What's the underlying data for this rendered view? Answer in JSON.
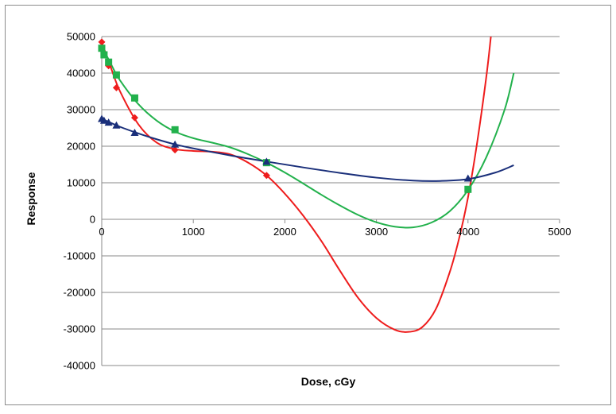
{
  "chart_data": {
    "type": "scatter",
    "title": "",
    "xlabel": "Dose, cGy",
    "ylabel": "Response",
    "xlim": [
      0,
      5000
    ],
    "ylim": [
      -40000,
      50000
    ],
    "xticks": [
      0,
      1000,
      2000,
      3000,
      4000,
      5000
    ],
    "yticks": [
      -40000,
      -30000,
      -20000,
      -10000,
      0,
      10000,
      20000,
      30000,
      40000,
      50000
    ],
    "grid": "horizontal",
    "legend": "none",
    "series": [
      {
        "marker": "diamond",
        "color": "#ee1c1c",
        "points": [
          {
            "x": 0,
            "y": 48500
          },
          {
            "x": 25,
            "y": 45500
          },
          {
            "x": 75,
            "y": 42000
          },
          {
            "x": 160,
            "y": 36000
          },
          {
            "x": 360,
            "y": 27800
          },
          {
            "x": 800,
            "y": 19000
          },
          {
            "x": 1800,
            "y": 12000
          },
          {
            "x": 4000,
            "y": 8000
          }
        ],
        "trendline": [
          {
            "x": 0,
            "y": 48500
          },
          {
            "x": 100,
            "y": 41500
          },
          {
            "x": 200,
            "y": 35000
          },
          {
            "x": 400,
            "y": 26000
          },
          {
            "x": 600,
            "y": 21000
          },
          {
            "x": 800,
            "y": 19200
          },
          {
            "x": 1000,
            "y": 18700
          },
          {
            "x": 1200,
            "y": 18500
          },
          {
            "x": 1400,
            "y": 17800
          },
          {
            "x": 1600,
            "y": 15500
          },
          {
            "x": 1800,
            "y": 12000
          },
          {
            "x": 2000,
            "y": 7000
          },
          {
            "x": 2200,
            "y": 1000
          },
          {
            "x": 2400,
            "y": -6000
          },
          {
            "x": 2600,
            "y": -14000
          },
          {
            "x": 2800,
            "y": -21500
          },
          {
            "x": 3000,
            "y": -27000
          },
          {
            "x": 3200,
            "y": -30200
          },
          {
            "x": 3350,
            "y": -30800
          },
          {
            "x": 3500,
            "y": -29500
          },
          {
            "x": 3650,
            "y": -24500
          },
          {
            "x": 3800,
            "y": -14500
          },
          {
            "x": 3900,
            "y": -5500
          },
          {
            "x": 4000,
            "y": 6000
          },
          {
            "x": 4100,
            "y": 21000
          },
          {
            "x": 4200,
            "y": 39000
          },
          {
            "x": 4250,
            "y": 50000
          }
        ]
      },
      {
        "marker": "square",
        "color": "#22b14c",
        "points": [
          {
            "x": 0,
            "y": 46800
          },
          {
            "x": 25,
            "y": 45000
          },
          {
            "x": 75,
            "y": 43000
          },
          {
            "x": 160,
            "y": 39500
          },
          {
            "x": 360,
            "y": 33200
          },
          {
            "x": 800,
            "y": 24500
          },
          {
            "x": 1800,
            "y": 15500
          },
          {
            "x": 4000,
            "y": 8200
          }
        ],
        "trendline": [
          {
            "x": 0,
            "y": 47500
          },
          {
            "x": 100,
            "y": 42500
          },
          {
            "x": 200,
            "y": 38000
          },
          {
            "x": 400,
            "y": 31500
          },
          {
            "x": 600,
            "y": 27000
          },
          {
            "x": 800,
            "y": 24000
          },
          {
            "x": 1000,
            "y": 22200
          },
          {
            "x": 1200,
            "y": 21000
          },
          {
            "x": 1400,
            "y": 19700
          },
          {
            "x": 1600,
            "y": 17800
          },
          {
            "x": 1800,
            "y": 15500
          },
          {
            "x": 2000,
            "y": 12800
          },
          {
            "x": 2200,
            "y": 9800
          },
          {
            "x": 2400,
            "y": 6700
          },
          {
            "x": 2600,
            "y": 3800
          },
          {
            "x": 2800,
            "y": 1200
          },
          {
            "x": 3000,
            "y": -800
          },
          {
            "x": 3200,
            "y": -2000
          },
          {
            "x": 3400,
            "y": -2200
          },
          {
            "x": 3600,
            "y": -900
          },
          {
            "x": 3800,
            "y": 2200
          },
          {
            "x": 4000,
            "y": 8000
          },
          {
            "x": 4200,
            "y": 17000
          },
          {
            "x": 4400,
            "y": 30000
          },
          {
            "x": 4500,
            "y": 40000
          }
        ]
      },
      {
        "marker": "triangle",
        "color": "#1a2f7a",
        "points": [
          {
            "x": 0,
            "y": 27500
          },
          {
            "x": 25,
            "y": 27000
          },
          {
            "x": 75,
            "y": 26500
          },
          {
            "x": 160,
            "y": 25700
          },
          {
            "x": 360,
            "y": 23700
          },
          {
            "x": 800,
            "y": 20500
          },
          {
            "x": 1800,
            "y": 15800
          },
          {
            "x": 4000,
            "y": 11200
          }
        ],
        "trendline": [
          {
            "x": 0,
            "y": 27500
          },
          {
            "x": 200,
            "y": 25300
          },
          {
            "x": 400,
            "y": 23500
          },
          {
            "x": 600,
            "y": 21900
          },
          {
            "x": 800,
            "y": 20500
          },
          {
            "x": 1000,
            "y": 19400
          },
          {
            "x": 1400,
            "y": 17500
          },
          {
            "x": 1800,
            "y": 15800
          },
          {
            "x": 2200,
            "y": 14200
          },
          {
            "x": 2600,
            "y": 12700
          },
          {
            "x": 3000,
            "y": 11400
          },
          {
            "x": 3400,
            "y": 10600
          },
          {
            "x": 3700,
            "y": 10500
          },
          {
            "x": 4000,
            "y": 11000
          },
          {
            "x": 4300,
            "y": 12800
          },
          {
            "x": 4500,
            "y": 14800
          }
        ]
      }
    ]
  }
}
